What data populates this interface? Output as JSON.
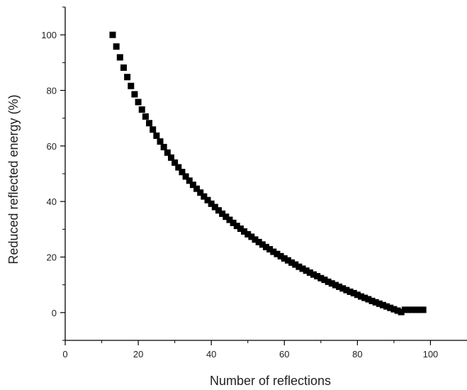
{
  "chart_data": {
    "type": "scatter",
    "xlabel": "Number of reflections",
    "ylabel": "Reduced reflected energy (%)",
    "xlim": [
      0,
      110
    ],
    "ylim": [
      -10,
      110
    ],
    "x_ticks": [
      0,
      20,
      40,
      60,
      80,
      100
    ],
    "y_ticks": [
      0,
      20,
      40,
      60,
      80,
      100
    ],
    "grid": false,
    "marker": "square",
    "colors": {
      "marker": "#000000",
      "axis": "#000000"
    },
    "series": [
      {
        "x": [
          13,
          14,
          15,
          16,
          17,
          18,
          19,
          20,
          21,
          22,
          23,
          24,
          25,
          26,
          27,
          28,
          29,
          30,
          31,
          32,
          33,
          34,
          35,
          36,
          37,
          38,
          39,
          40,
          41,
          42,
          43,
          44,
          45,
          46,
          47,
          48,
          49,
          50,
          51,
          52,
          53,
          54,
          55,
          56,
          57,
          58,
          59,
          60,
          61,
          62,
          63,
          64,
          65,
          66,
          67,
          68,
          69,
          70,
          71,
          72,
          73,
          74,
          75,
          76,
          77,
          78,
          79,
          80,
          81,
          82,
          83,
          84,
          85,
          86,
          87,
          88,
          89,
          90,
          91,
          92,
          93,
          94,
          95,
          96,
          97,
          98
        ],
        "y": [
          100.0,
          95.8,
          91.9,
          88.2,
          84.8,
          81.6,
          78.6,
          75.8,
          73.1,
          70.6,
          68.2,
          65.9,
          63.7,
          61.6,
          59.6,
          57.6,
          55.8,
          54.0,
          52.3,
          50.6,
          49.0,
          47.5,
          46.0,
          44.6,
          43.2,
          41.8,
          40.5,
          39.2,
          38.0,
          36.8,
          35.6,
          34.5,
          33.4,
          32.3,
          31.2,
          30.2,
          29.2,
          28.2,
          27.3,
          26.3,
          25.4,
          24.5,
          23.6,
          22.8,
          21.9,
          21.1,
          20.3,
          19.5,
          18.8,
          18.0,
          17.3,
          16.5,
          15.8,
          15.1,
          14.4,
          13.7,
          13.1,
          12.4,
          11.8,
          11.1,
          10.5,
          9.9,
          9.3,
          8.7,
          8.1,
          7.5,
          7.0,
          6.4,
          5.8,
          5.3,
          4.8,
          4.2,
          3.7,
          3.2,
          2.7,
          2.2,
          1.7,
          1.2,
          0.7,
          0.2,
          1.0,
          1.0,
          1.0,
          1.0,
          1.0,
          1.0
        ]
      }
    ]
  }
}
